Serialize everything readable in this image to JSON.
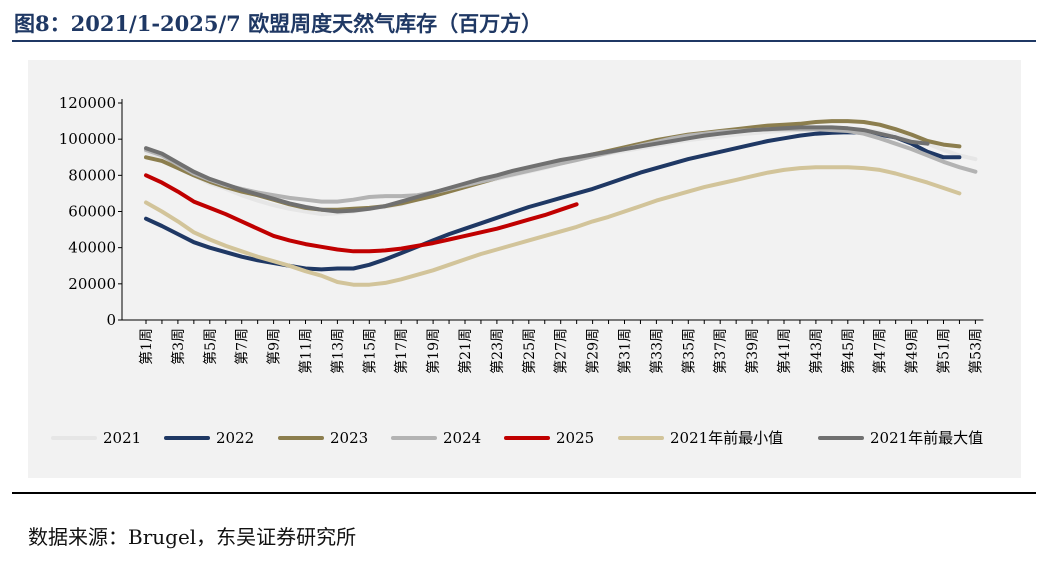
{
  "header": {
    "title": "图8：2021/1-2025/7 欧盟周度天然气库存（百万方）"
  },
  "footer": {
    "source": "数据来源：Brugel，东吴证券研究所"
  },
  "chart_data": {
    "type": "line",
    "title": "",
    "xlabel": "",
    "ylabel": "",
    "ylim": [
      0,
      120000
    ],
    "yticks": [
      0,
      20000,
      40000,
      60000,
      80000,
      100000,
      120000
    ],
    "x": [
      "第1周",
      "第2周",
      "第3周",
      "第4周",
      "第5周",
      "第6周",
      "第7周",
      "第8周",
      "第9周",
      "第10周",
      "第11周",
      "第12周",
      "第13周",
      "第14周",
      "第15周",
      "第16周",
      "第17周",
      "第18周",
      "第19周",
      "第20周",
      "第21周",
      "第22周",
      "第23周",
      "第24周",
      "第25周",
      "第26周",
      "第27周",
      "第28周",
      "第29周",
      "第30周",
      "第31周",
      "第32周",
      "第33周",
      "第34周",
      "第35周",
      "第36周",
      "第37周",
      "第38周",
      "第39周",
      "第40周",
      "第41周",
      "第42周",
      "第43周",
      "第44周",
      "第45周",
      "第46周",
      "第47周",
      "第48周",
      "第49周",
      "第50周",
      "第51周",
      "第52周",
      "第53周"
    ],
    "xtick_labels": [
      "第1周",
      "第3周",
      "第5周",
      "第7周",
      "第9周",
      "第11周",
      "第13周",
      "第15周",
      "第17周",
      "第19周",
      "第21周",
      "第23周",
      "第25周",
      "第27周",
      "第29周",
      "第31周",
      "第33周",
      "第35周",
      "第37周",
      "第39周",
      "第41周",
      "第43周",
      "第45周",
      "第47周",
      "第49周",
      "第51周",
      "第53周"
    ],
    "grid": false,
    "legend_position": "bottom",
    "series": [
      {
        "name": "2021",
        "color": "#e6e6e6",
        "values": [
          93000,
          89000,
          84000,
          80000,
          75500,
          72500,
          69000,
          66000,
          63500,
          61500,
          60000,
          58500,
          59000,
          60000,
          61500,
          62500,
          64000,
          66500,
          69000,
          71500,
          74000,
          76000,
          78000,
          80000,
          82000,
          84000,
          86500,
          88500,
          90500,
          92000,
          93500,
          95000,
          96500,
          98000,
          99500,
          100500,
          101500,
          102500,
          103300,
          104000,
          104500,
          105000,
          105200,
          105300,
          105200,
          104800,
          104000,
          102500,
          100500,
          97500,
          94000,
          91000,
          89000
        ]
      },
      {
        "name": "2022",
        "color": "#1f3864",
        "values": [
          56000,
          52000,
          47500,
          43000,
          40000,
          37500,
          35000,
          33000,
          31500,
          30000,
          28500,
          28000,
          28500,
          28500,
          30500,
          33500,
          37000,
          40500,
          44000,
          47500,
          50500,
          53500,
          56500,
          59500,
          62500,
          65000,
          67500,
          70000,
          72500,
          75500,
          78500,
          81500,
          84000,
          86500,
          89000,
          91000,
          93000,
          95000,
          97000,
          99000,
          100500,
          102000,
          103000,
          103500,
          103800,
          103500,
          102500,
          101000,
          97500,
          93000,
          90000,
          90000,
          null
        ]
      },
      {
        "name": "2023",
        "color": "#8c7e4e",
        "values": [
          90000,
          88000,
          84000,
          80000,
          76500,
          73500,
          71000,
          69000,
          66500,
          64000,
          62000,
          61000,
          61000,
          61500,
          62000,
          63000,
          64500,
          66500,
          68500,
          71000,
          73500,
          76000,
          78500,
          81000,
          83000,
          85500,
          87500,
          89500,
          91500,
          93500,
          95500,
          97500,
          99500,
          101000,
          102500,
          103500,
          104500,
          105500,
          106500,
          107500,
          108000,
          108500,
          109500,
          110000,
          110000,
          109500,
          108000,
          105500,
          102500,
          99000,
          97000,
          96000,
          null
        ]
      },
      {
        "name": "2024",
        "color": "#b3b3b3",
        "values": [
          94000,
          91000,
          86000,
          81000,
          77500,
          74500,
          72500,
          70500,
          69000,
          67500,
          66500,
          65500,
          65500,
          66500,
          68000,
          68500,
          68500,
          69000,
          70500,
          72500,
          74500,
          76500,
          78500,
          80500,
          82500,
          84500,
          86500,
          88500,
          90500,
          92500,
          94500,
          96500,
          98500,
          100500,
          102000,
          103000,
          104000,
          104500,
          105000,
          105500,
          105500,
          105500,
          105500,
          105000,
          104500,
          103000,
          100500,
          97500,
          94500,
          91000,
          87500,
          84500,
          82000
        ]
      },
      {
        "name": "2025",
        "color": "#c00000",
        "values": [
          80000,
          76000,
          71000,
          65500,
          62000,
          58500,
          54500,
          50500,
          46500,
          44000,
          42000,
          40500,
          39000,
          38000,
          38000,
          38500,
          39500,
          41000,
          42500,
          44500,
          46500,
          48500,
          50500,
          53000,
          55500,
          58000,
          61000,
          64000,
          null,
          null,
          null,
          null,
          null,
          null,
          null,
          null,
          null,
          null,
          null,
          null,
          null,
          null,
          null,
          null,
          null,
          null,
          null,
          null,
          null,
          null,
          null,
          null,
          null
        ]
      },
      {
        "name": "2021年前最小值",
        "color": "#d2c49a",
        "values": [
          65000,
          60000,
          54500,
          48500,
          44500,
          41000,
          38000,
          35000,
          32500,
          30000,
          27000,
          24500,
          21000,
          19500,
          19500,
          20500,
          22500,
          25000,
          27500,
          30500,
          33500,
          36500,
          39000,
          41500,
          44000,
          46500,
          49000,
          51500,
          54500,
          57000,
          60000,
          63000,
          66000,
          68500,
          71000,
          73500,
          75500,
          77500,
          79500,
          81500,
          83000,
          84000,
          84500,
          84500,
          84500,
          84000,
          83000,
          81000,
          78500,
          76000,
          73000,
          70000,
          null
        ]
      },
      {
        "name": "2021年前最大值",
        "color": "#707070",
        "values": [
          95000,
          92000,
          87000,
          82000,
          78000,
          75000,
          72000,
          69500,
          67000,
          64500,
          62500,
          61000,
          60000,
          60500,
          61500,
          63000,
          65500,
          68000,
          70500,
          73000,
          75500,
          78000,
          80000,
          82500,
          84500,
          86500,
          88500,
          90000,
          91500,
          93000,
          94500,
          96000,
          97500,
          99000,
          100500,
          102000,
          103000,
          104000,
          105000,
          105500,
          106000,
          106500,
          106500,
          106500,
          106000,
          105000,
          103000,
          101000,
          98500,
          97500,
          null,
          null,
          null
        ]
      }
    ]
  }
}
